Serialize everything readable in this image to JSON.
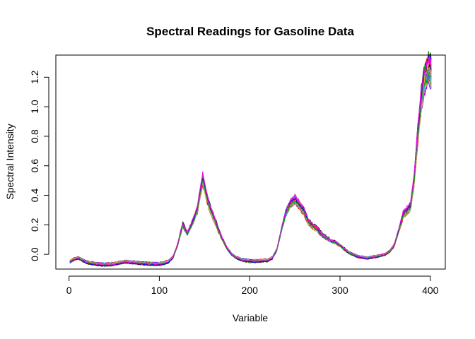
{
  "chart_data": {
    "type": "line",
    "title": "Spectral Readings for Gasoline Data",
    "xlabel": "Variable",
    "ylabel": "Spectral Intensity",
    "xlim": [
      1,
      401
    ],
    "ylim": [
      -0.1,
      1.35
    ],
    "x_ticks": [
      "0",
      "100",
      "200",
      "300",
      "400"
    ],
    "y_ticks": [
      "0.0",
      "0.2",
      "0.4",
      "0.6",
      "0.8",
      "1.0",
      "1.2"
    ],
    "grid": false,
    "legend": "none",
    "series_count": 60,
    "palette": [
      "#000000",
      "#DF536B",
      "#61D04F",
      "#2297E6",
      "#28E2E5",
      "#CD0BBC",
      "#F5C710",
      "#9E9E9E",
      "#FF0000",
      "#0000FF",
      "#00A000",
      "#FF00FF"
    ],
    "mean_spectrum": {
      "x": [
        1,
        5,
        10,
        20,
        30,
        40,
        50,
        62,
        70,
        80,
        90,
        100,
        105,
        110,
        115,
        120,
        126,
        131,
        137,
        142,
        148,
        152,
        156,
        160,
        165,
        170,
        175,
        180,
        186,
        192,
        200,
        210,
        220,
        225,
        230,
        235,
        240,
        245,
        250,
        255,
        260,
        265,
        270,
        275,
        280,
        285,
        290,
        295,
        300,
        310,
        320,
        330,
        340,
        350,
        355,
        360,
        365,
        370,
        375,
        378,
        382,
        386,
        390,
        394,
        398,
        401
      ],
      "y": [
        -0.05,
        -0.035,
        -0.025,
        -0.055,
        -0.065,
        -0.07,
        -0.065,
        -0.05,
        -0.055,
        -0.06,
        -0.065,
        -0.065,
        -0.06,
        -0.05,
        -0.02,
        0.06,
        0.2,
        0.14,
        0.22,
        0.3,
        0.51,
        0.4,
        0.31,
        0.25,
        0.17,
        0.1,
        0.04,
        0.0,
        -0.025,
        -0.038,
        -0.045,
        -0.045,
        -0.04,
        -0.025,
        0.03,
        0.16,
        0.28,
        0.34,
        0.37,
        0.33,
        0.29,
        0.22,
        0.19,
        0.17,
        0.13,
        0.11,
        0.09,
        0.08,
        0.06,
        0.01,
        -0.015,
        -0.025,
        -0.015,
        0.0,
        0.02,
        0.06,
        0.16,
        0.27,
        0.3,
        0.32,
        0.5,
        0.8,
        1.05,
        1.2,
        1.27,
        1.23
      ]
    }
  }
}
